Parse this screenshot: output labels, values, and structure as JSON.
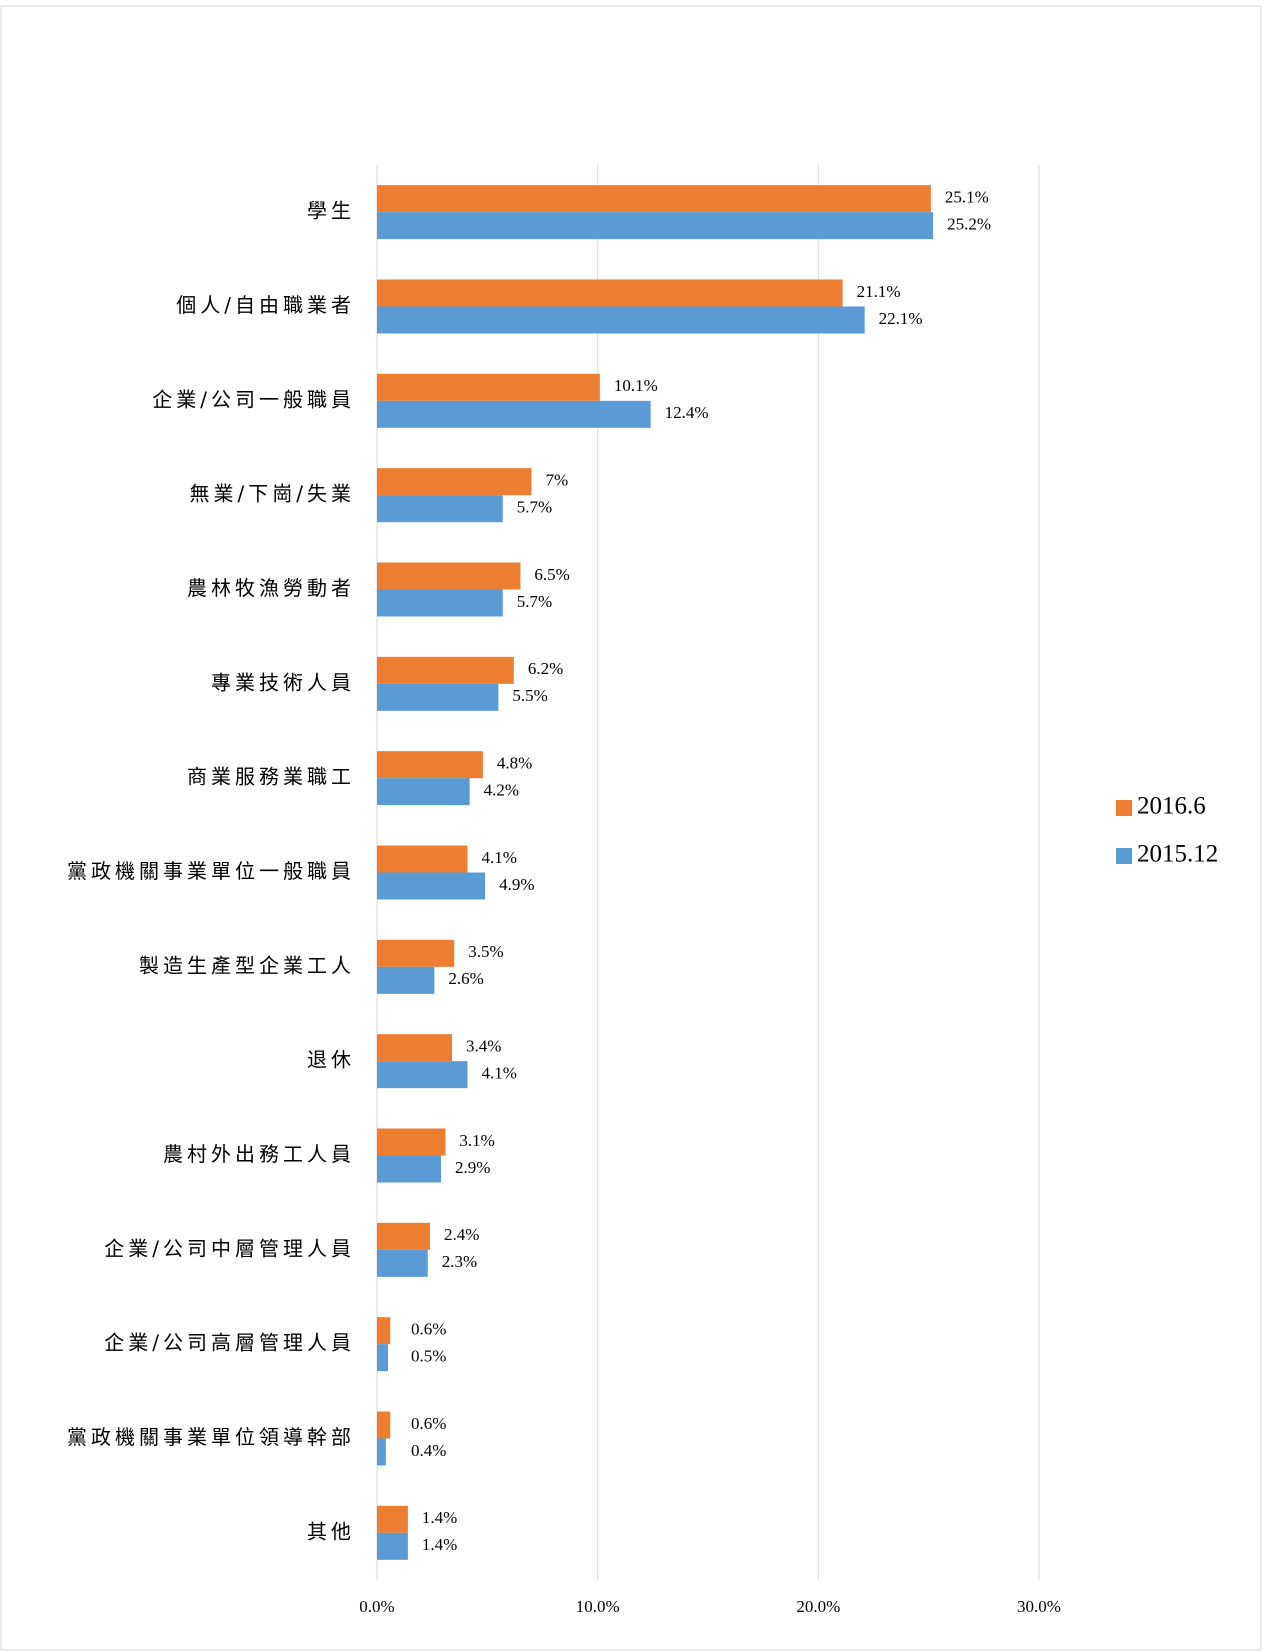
{
  "chart_data": {
    "type": "barh",
    "categories": [
      "學生",
      "個人/自由職業者",
      "企業/公司一般職員",
      "無業/下崗/失業",
      "農林牧漁勞動者",
      "專業技術人員",
      "商業服務業職工",
      "黨政機關事業單位一般職員",
      "製造生產型企業工人",
      "退休",
      "農村外出務工人員",
      "企業/公司中層管理人員",
      "企業/公司高層管理人員",
      "黨政機關事業單位領導幹部",
      "其他"
    ],
    "series": [
      {
        "name": "2016.6",
        "color": "#ed7d31",
        "values": [
          25.1,
          21.1,
          10.1,
          7,
          6.5,
          6.2,
          4.8,
          4.1,
          3.5,
          3.4,
          3.1,
          2.4,
          0.6,
          0.6,
          1.4
        ],
        "value_labels": [
          "25.1%",
          "21.1%",
          "10.1%",
          "7%",
          "6.5%",
          "6.2%",
          "4.8%",
          "4.1%",
          "3.5%",
          "3.4%",
          "3.1%",
          "2.4%",
          "0.6%",
          "0.6%",
          "1.4%"
        ]
      },
      {
        "name": "2015.12",
        "color": "#5b9bd5",
        "values": [
          25.2,
          22.1,
          12.4,
          5.7,
          5.7,
          5.5,
          4.2,
          4.9,
          2.6,
          4.1,
          2.9,
          2.3,
          0.5,
          0.4,
          1.4
        ],
        "value_labels": [
          "25.2%",
          "22.1%",
          "12.4%",
          "5.7%",
          "5.7%",
          "5.5%",
          "4.2%",
          "4.9%",
          "2.6%",
          "4.1%",
          "2.9%",
          "2.3%",
          "0.5%",
          "0.4%",
          "1.4%"
        ]
      }
    ],
    "xlim": [
      0,
      30
    ],
    "xticks": [
      {
        "value": 0,
        "label": "0.0%"
      },
      {
        "value": 10,
        "label": "10.0%"
      },
      {
        "value": 20,
        "label": "20.0%"
      },
      {
        "value": 30,
        "label": "30.0%"
      }
    ],
    "grid": true,
    "legend": "right"
  }
}
